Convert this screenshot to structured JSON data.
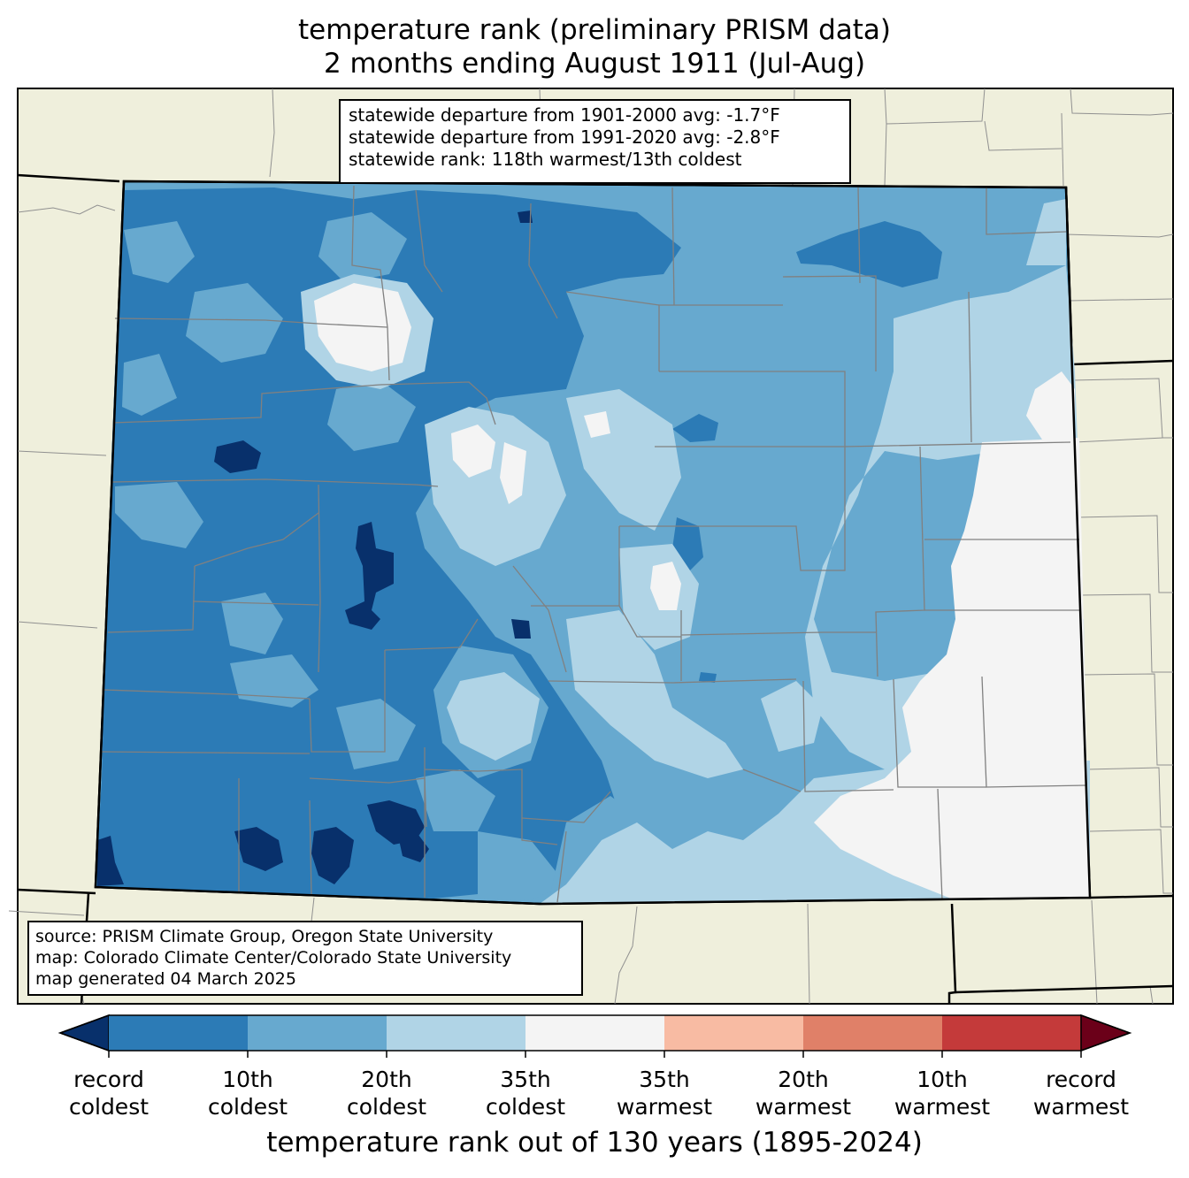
{
  "title": {
    "line1": "temperature rank (preliminary PRISM data)",
    "line2": "2 months ending August 1911 (Jul-Aug)"
  },
  "stats_box": {
    "line1": "statewide departure from 1901-2000 avg: -1.7°F",
    "line2": "statewide departure from 1991-2020 avg: -2.8°F",
    "line3": "statewide rank: 118th warmest/13th coldest"
  },
  "source_box": {
    "line1": "source: PRISM Climate Group, Oregon State University",
    "line2": "map: Colorado Climate Center/Colorado State University",
    "line3": "map generated 04 March 2025"
  },
  "colorbar": {
    "title": "temperature rank out of 130 years (1895-2024)",
    "colors": [
      "#08306b",
      "#2c7bb6",
      "#67a9cf",
      "#b0d4e6",
      "#f4f4f4",
      "#f8bba3",
      "#e08068",
      "#c43a3a",
      "#6b0019"
    ],
    "ticks": [
      {
        "line1": "record",
        "line2": "coldest"
      },
      {
        "line1": "10th",
        "line2": "coldest"
      },
      {
        "line1": "20th",
        "line2": "coldest"
      },
      {
        "line1": "35th",
        "line2": "coldest"
      },
      {
        "line1": "35th",
        "line2": "warmest"
      },
      {
        "line1": "20th",
        "line2": "warmest"
      },
      {
        "line1": "10th",
        "line2": "warmest"
      },
      {
        "line1": "record",
        "line2": "warmest"
      }
    ]
  },
  "map_colors": {
    "land": "#efefdc",
    "record_cold": "#08306b",
    "top10_cold": "#2c7bb6",
    "top20_cold": "#67a9cf",
    "top35_cold": "#b0d4e6",
    "near_normal": "#f4f4f4",
    "county_lines": "#808080"
  }
}
